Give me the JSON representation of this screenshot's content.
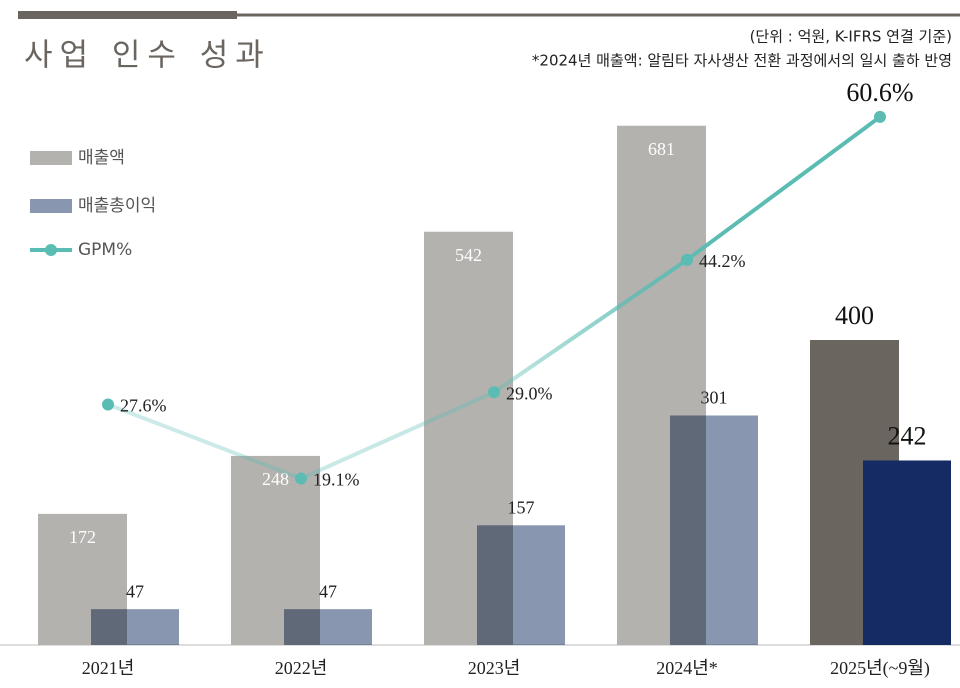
{
  "chart_data": {
    "type": "bar",
    "title": "사업 인수 성과",
    "subtitle": "(단위 : 억원, K-IFRS 연결 기준)",
    "annotation": "*2024년 매출액: 알림타 자사생산 전환 과정에서의 일시 출하 반영",
    "categories": [
      "2021년",
      "2022년",
      "2023년",
      "2024년*",
      "2025년(~9월)"
    ],
    "series": [
      {
        "name": "매출액",
        "colors": [
          "#b3b2ae",
          "#b3b2ae",
          "#b3b2ae",
          "#b3b2ae",
          "#6b6560"
        ],
        "values": [
          172,
          248,
          542,
          681,
          400
        ]
      },
      {
        "name": "매출총이익",
        "colors": [
          "#8896b0",
          "#8896b0",
          "#8896b0",
          "#8896b0",
          "#142b63"
        ],
        "values": [
          47,
          47,
          157,
          301,
          242
        ]
      },
      {
        "name": "GPM%",
        "type": "line",
        "axis": "y2",
        "color": "#5bbcb3",
        "values": [
          27.6,
          19.1,
          29.0,
          44.2,
          60.6
        ],
        "value_labels": [
          "27.6%",
          "19.1%",
          "29.0%",
          "44.2%",
          "60.6%"
        ]
      }
    ],
    "ylim": [
      0,
      800
    ],
    "y2lim": [
      0,
      70
    ],
    "legend": "top-left"
  }
}
